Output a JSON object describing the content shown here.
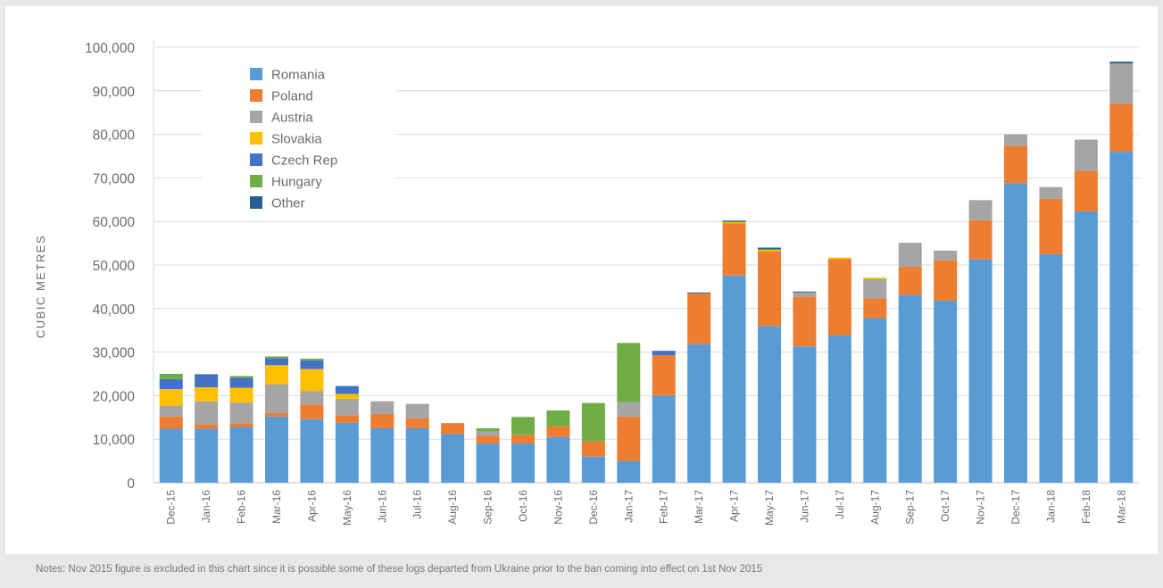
{
  "chart_data": {
    "type": "bar",
    "stacked": true,
    "title": "",
    "xlabel": "",
    "ylabel": "CUBIC METRES",
    "ylim": [
      0,
      100000
    ],
    "yticks": [
      0,
      10000,
      20000,
      30000,
      40000,
      50000,
      60000,
      70000,
      80000,
      90000,
      100000
    ],
    "ytick_labels": [
      "0",
      "10,000",
      "20,000",
      "30,000",
      "40,000",
      "50,000",
      "60,000",
      "70,000",
      "80,000",
      "90,000",
      "100,000"
    ],
    "grid": true,
    "legend_position": "top-left",
    "categories": [
      "Dec-15",
      "Jan-16",
      "Feb-16",
      "Mar-16",
      "Apr-16",
      "May-16",
      "Jun-16",
      "Jul-16",
      "Aug-16",
      "Sep-16",
      "Oct-16",
      "Nov-16",
      "Dec-16",
      "Jan-17",
      "Feb-17",
      "Mar-17",
      "Apr-17",
      "May-17",
      "Jun-17",
      "Jul-17",
      "Aug-17",
      "Sep-17",
      "Oct-17",
      "Nov-17",
      "Dec-17",
      "Jan-18",
      "Feb-18",
      "Mar-18"
    ],
    "series": [
      {
        "name": "Romania",
        "color": "#5b9bd5",
        "values": [
          12400,
          12400,
          12800,
          15200,
          14600,
          13800,
          12500,
          12500,
          11200,
          9000,
          9000,
          10500,
          6000,
          5000,
          20000,
          31800,
          47600,
          36000,
          31300,
          33800,
          37800,
          43100,
          41800,
          51300,
          68800,
          52500,
          62300,
          76000
        ]
      },
      {
        "name": "Poland",
        "color": "#ed7d31",
        "values": [
          2800,
          1000,
          800,
          800,
          3400,
          1700,
          3300,
          2300,
          2500,
          1800,
          2000,
          2500,
          3500,
          10200,
          9300,
          11700,
          12000,
          17200,
          11400,
          17600,
          4500,
          6500,
          9300,
          9000,
          8600,
          12700,
          9300,
          11000
        ]
      },
      {
        "name": "Austria",
        "color": "#a5a5a5",
        "values": [
          2500,
          5300,
          4800,
          6600,
          3000,
          3800,
          2900,
          3300,
          0,
          1000,
          0,
          0,
          0,
          3300,
          0,
          0,
          0,
          0,
          1000,
          0,
          4500,
          5500,
          2200,
          4600,
          2600,
          2700,
          7200,
          9300
        ]
      },
      {
        "name": "Slovakia",
        "color": "#ffc000",
        "values": [
          3800,
          3200,
          3400,
          4400,
          5100,
          1100,
          0,
          0,
          0,
          0,
          0,
          0,
          0,
          0,
          0,
          0,
          300,
          300,
          0,
          300,
          300,
          0,
          0,
          0,
          0,
          0,
          0,
          0
        ]
      },
      {
        "name": "Czech Rep",
        "color": "#4472c4",
        "values": [
          2300,
          2800,
          2300,
          1600,
          2000,
          1800,
          0,
          0,
          0,
          0,
          0,
          0,
          0,
          0,
          1000,
          0,
          0,
          200,
          0,
          0,
          0,
          0,
          0,
          0,
          0,
          0,
          0,
          0
        ]
      },
      {
        "name": "Hungary",
        "color": "#70ad47",
        "values": [
          1200,
          0,
          400,
          400,
          400,
          0,
          0,
          0,
          0,
          700,
          4100,
          3600,
          8800,
          13600,
          0,
          0,
          0,
          0,
          0,
          0,
          0,
          0,
          0,
          0,
          0,
          0,
          0,
          0
        ]
      },
      {
        "name": "Other",
        "color": "#255e91",
        "values": [
          0,
          200,
          0,
          0,
          0,
          0,
          0,
          0,
          0,
          0,
          0,
          0,
          0,
          0,
          0,
          200,
          300,
          300,
          200,
          0,
          0,
          0,
          0,
          0,
          0,
          0,
          0,
          400
        ]
      }
    ]
  },
  "note": "Notes: Nov 2015 figure is excluded in this chart since it is possible some of these logs departed from Ukraine prior to the ban coming into effect on 1st Nov 2015"
}
